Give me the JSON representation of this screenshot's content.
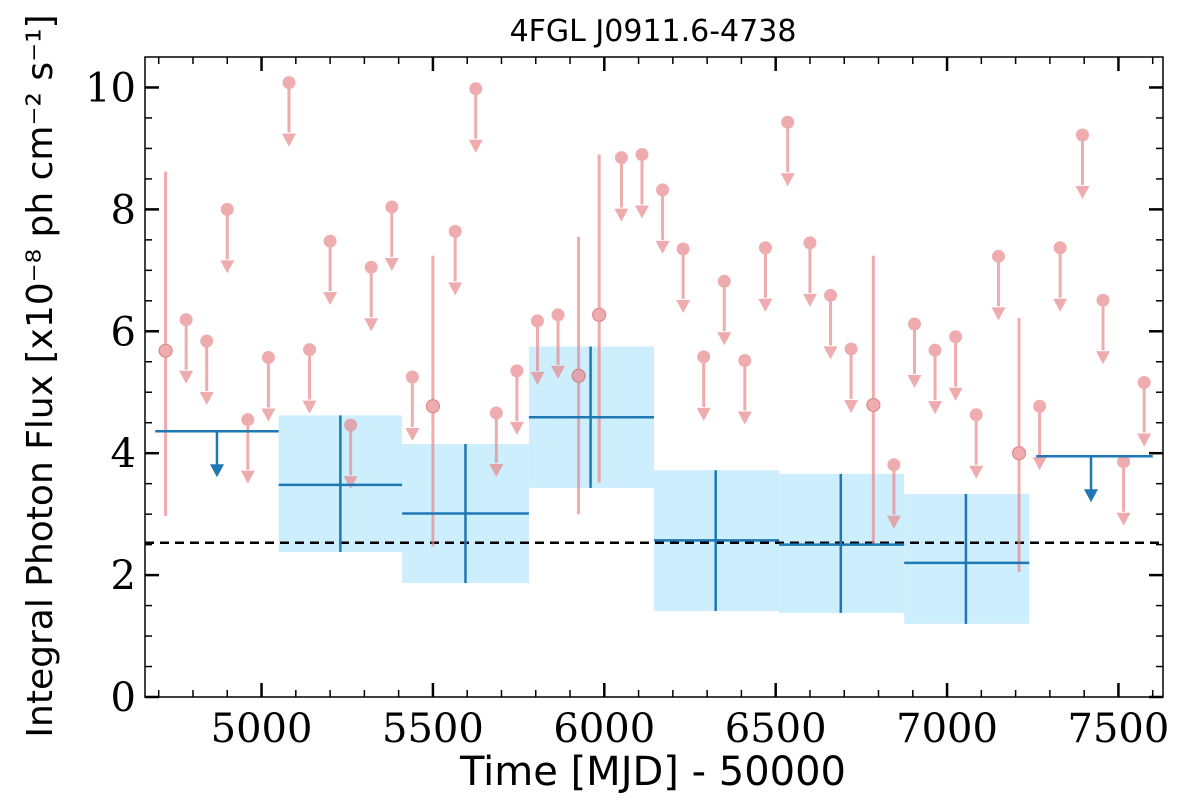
{
  "chart_data": {
    "type": "scatter",
    "title": "4FGL J0911.6-4738",
    "xlabel": "Time [MJD] - 50000",
    "ylabel": "Integral Photon Flux [x10⁻⁸ ph cm⁻² s⁻¹]",
    "xlim": [
      4660,
      7630
    ],
    "ylim": [
      0,
      10.5
    ],
    "xticks": [
      "5000",
      "5500",
      "6000",
      "6500",
      "7000",
      "7500"
    ],
    "yticks": [
      "0",
      "2",
      "4",
      "6",
      "8",
      "10"
    ],
    "grid": false,
    "legend": "none",
    "colors": {
      "short_bins": "#e8898c",
      "long_bins": "#1f77b4",
      "band": "#cdeefc",
      "baseline": "#000000"
    },
    "baseline": 2.53,
    "short_bins_detections": [
      {
        "x": 4720,
        "y": 5.68,
        "ylo": 2.97,
        "yhi": 8.62
      },
      {
        "x": 5500,
        "y": 4.77,
        "ylo": 2.47,
        "yhi": 7.24
      },
      {
        "x": 5925,
        "y": 5.27,
        "ylo": 3.0,
        "yhi": 7.55
      },
      {
        "x": 5985,
        "y": 6.27,
        "ylo": 3.52,
        "yhi": 8.9
      },
      {
        "x": 6785,
        "y": 4.79,
        "ylo": 2.5,
        "yhi": 7.24
      },
      {
        "x": 7210,
        "y": 4.0,
        "ylo": 2.05,
        "yhi": 6.22
      }
    ],
    "short_bins_upper_limits": [
      {
        "x": 4780,
        "y": 6.19
      },
      {
        "x": 4840,
        "y": 5.84
      },
      {
        "x": 4900,
        "y": 8.0
      },
      {
        "x": 4960,
        "y": 4.55
      },
      {
        "x": 5020,
        "y": 5.57
      },
      {
        "x": 5080,
        "y": 10.08
      },
      {
        "x": 5140,
        "y": 5.7
      },
      {
        "x": 5200,
        "y": 7.48
      },
      {
        "x": 5260,
        "y": 4.46
      },
      {
        "x": 5320,
        "y": 7.05
      },
      {
        "x": 5380,
        "y": 8.04
      },
      {
        "x": 5440,
        "y": 5.25
      },
      {
        "x": 5565,
        "y": 7.64
      },
      {
        "x": 5625,
        "y": 9.98
      },
      {
        "x": 5685,
        "y": 4.66
      },
      {
        "x": 5745,
        "y": 5.35
      },
      {
        "x": 5805,
        "y": 6.17
      },
      {
        "x": 5865,
        "y": 6.27
      },
      {
        "x": 6050,
        "y": 8.85
      },
      {
        "x": 6110,
        "y": 8.9
      },
      {
        "x": 6170,
        "y": 8.32
      },
      {
        "x": 6230,
        "y": 7.35
      },
      {
        "x": 6290,
        "y": 5.58
      },
      {
        "x": 6350,
        "y": 6.82
      },
      {
        "x": 6410,
        "y": 5.52
      },
      {
        "x": 6470,
        "y": 7.37
      },
      {
        "x": 6535,
        "y": 9.43
      },
      {
        "x": 6600,
        "y": 7.45
      },
      {
        "x": 6660,
        "y": 6.59
      },
      {
        "x": 6720,
        "y": 5.71
      },
      {
        "x": 6845,
        "y": 3.81
      },
      {
        "x": 6905,
        "y": 6.12
      },
      {
        "x": 6965,
        "y": 5.69
      },
      {
        "x": 7025,
        "y": 5.91
      },
      {
        "x": 7085,
        "y": 4.63
      },
      {
        "x": 7150,
        "y": 7.23
      },
      {
        "x": 7270,
        "y": 4.77
      },
      {
        "x": 7330,
        "y": 7.37
      },
      {
        "x": 7395,
        "y": 9.22
      },
      {
        "x": 7455,
        "y": 6.51
      },
      {
        "x": 7515,
        "y": 3.86
      },
      {
        "x": 7575,
        "y": 5.16
      }
    ],
    "long_bins_upper_limits": [
      {
        "x": 4870,
        "xmin": 4690,
        "xmax": 5050,
        "y": 4.36
      },
      {
        "x": 7420,
        "xmin": 7260,
        "xmax": 7600,
        "y": 3.95
      }
    ],
    "long_bins_detections": [
      {
        "x": 5230,
        "xmin": 5050,
        "xmax": 5410,
        "y": 3.48,
        "ylo": 2.38,
        "yhi": 4.62
      },
      {
        "x": 5595,
        "xmin": 5410,
        "xmax": 5780,
        "y": 3.01,
        "ylo": 1.87,
        "yhi": 4.15
      },
      {
        "x": 5960,
        "xmin": 5780,
        "xmax": 6145,
        "y": 4.59,
        "ylo": 3.43,
        "yhi": 5.75
      },
      {
        "x": 6325,
        "xmin": 6145,
        "xmax": 6510,
        "y": 2.57,
        "ylo": 1.41,
        "yhi": 3.72
      },
      {
        "x": 6690,
        "xmin": 6510,
        "xmax": 6875,
        "y": 2.5,
        "ylo": 1.38,
        "yhi": 3.66
      },
      {
        "x": 7055,
        "xmin": 6875,
        "xmax": 7240,
        "y": 2.2,
        "ylo": 1.2,
        "yhi": 3.33
      }
    ]
  }
}
